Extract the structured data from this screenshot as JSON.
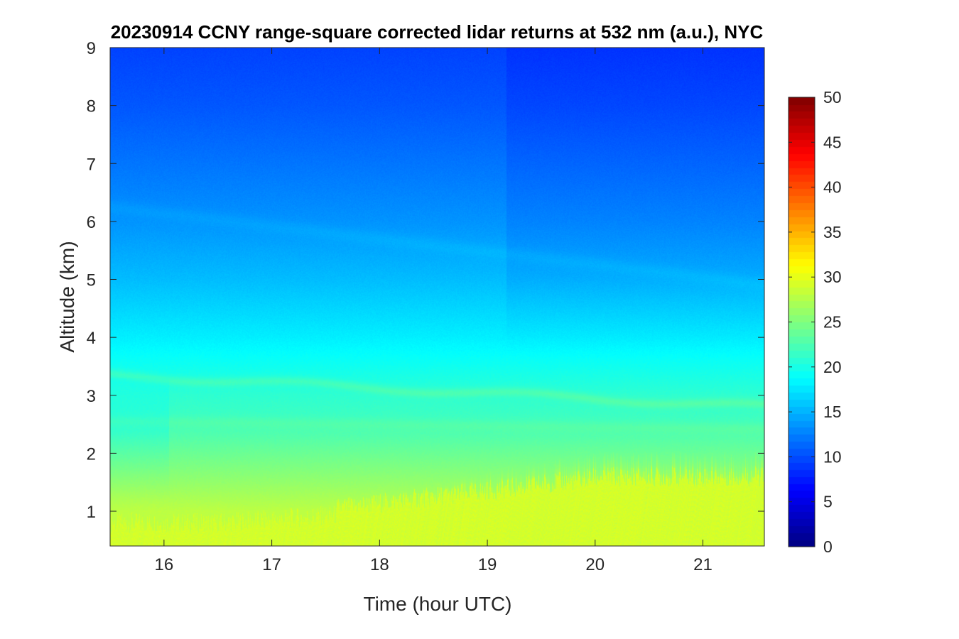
{
  "chart_data": {
    "type": "heatmap",
    "title": "20230914 CCNY range-square corrected lidar returns at 532 nm (a.u.), NYC",
    "xlabel": "Time (hour UTC)",
    "ylabel": "Altitude (km)",
    "xlim": [
      15.5,
      21.57
    ],
    "ylim": [
      0.4,
      9
    ],
    "xticks": [
      "16",
      "17",
      "18",
      "19",
      "20",
      "21"
    ],
    "yticks": [
      "1",
      "2",
      "3",
      "4",
      "5",
      "6",
      "7",
      "8",
      "9"
    ],
    "colorbar": {
      "colormap": "jet",
      "clim": [
        0,
        50
      ],
      "ticks": [
        "0",
        "5",
        "10",
        "15",
        "20",
        "25",
        "30",
        "35",
        "40",
        "45",
        "50"
      ]
    },
    "approx_profile": {
      "altitude_km": [
        0.4,
        1.0,
        1.5,
        2.0,
        2.5,
        3.0,
        3.5,
        4.0,
        5.0,
        6.0,
        7.0,
        8.0,
        9.0
      ],
      "value": [
        28,
        28,
        26,
        24,
        22,
        21,
        19.5,
        18,
        15.5,
        13.5,
        12,
        10.5,
        9.5
      ]
    },
    "features": [
      {
        "name": "boundary layer aerosol",
        "altitude_km_top": [
          0.85,
          1.6
        ],
        "value": 29
      },
      {
        "name": "residual / lofted layer",
        "altitude_km": [
          3.0,
          3.4
        ],
        "value": 20
      },
      {
        "name": "upper thin layer",
        "altitude_km": [
          5.0,
          6.2
        ],
        "value": 15
      },
      {
        "name": "instrument change",
        "time_hour": 19.18
      }
    ]
  }
}
